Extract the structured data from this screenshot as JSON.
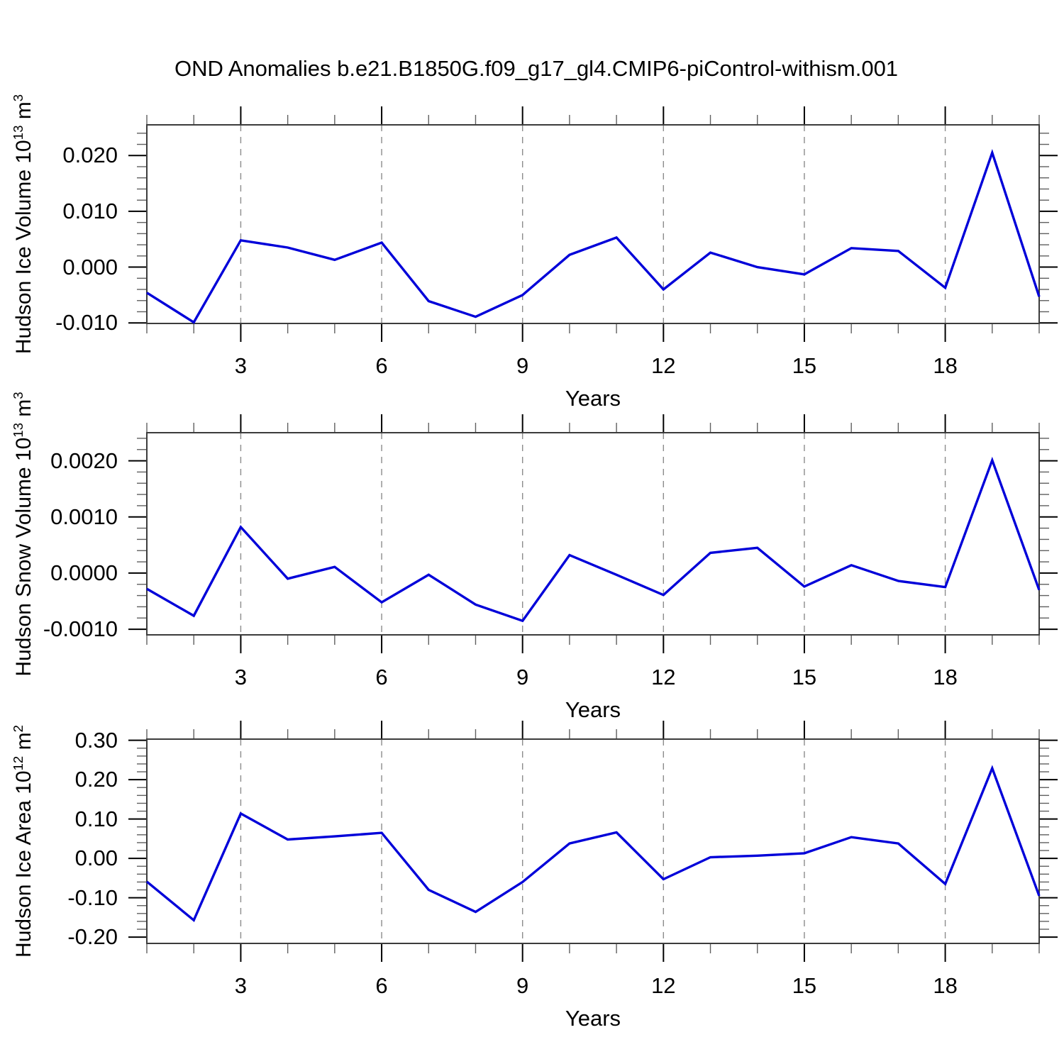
{
  "title": "OND Anomalies b.e21.B1850G.f09_g17_gl4.CMIP6-piControl-withism.001",
  "colors": {
    "line": "#0000d9",
    "frame": "#3c3c3c",
    "major_tick": "#000000",
    "minor_tick": "#606060",
    "gridline": "#8c8c8c",
    "text": "#000000",
    "background": "#ffffff"
  },
  "chart_data": [
    {
      "type": "line",
      "ylabel": {
        "base": "Hudson Ice Volume 10",
        "sup": "13",
        "unit": " m",
        "unit_sup": "3"
      },
      "xlabel": "Years",
      "x": [
        1,
        2,
        3,
        4,
        5,
        6,
        7,
        8,
        9,
        10,
        11,
        12,
        13,
        14,
        15,
        16,
        17,
        18,
        19,
        20
      ],
      "values": [
        -0.0046,
        -0.0099,
        0.0048,
        0.0035,
        0.0013,
        0.0044,
        -0.0061,
        -0.0089,
        -0.005,
        0.0022,
        0.0053,
        -0.004,
        0.0026,
        0.0,
        -0.0013,
        0.0034,
        0.0029,
        -0.0037,
        0.0205,
        -0.0053
      ],
      "xlim": [
        1,
        20
      ],
      "ylim": [
        -0.0101,
        0.0255
      ],
      "xtick_values": [
        3,
        6,
        9,
        12,
        15,
        18
      ],
      "xtick_labels": [
        "3",
        "6",
        "9",
        "12",
        "15",
        "18"
      ],
      "x_minor_step": 1,
      "ytick_values": [
        0.02,
        0.01,
        0.0,
        -0.01
      ],
      "ytick_labels": [
        "0.020",
        "0.010",
        "0.000",
        "-0.010"
      ],
      "y_minor_step": 0.002,
      "grid": "vertical-dashed"
    },
    {
      "type": "line",
      "ylabel": {
        "base": "Hudson Snow Volume 10",
        "sup": "13",
        "unit": " m",
        "unit_sup": "3"
      },
      "xlabel": "Years",
      "x": [
        1,
        2,
        3,
        4,
        5,
        6,
        7,
        8,
        9,
        10,
        11,
        12,
        13,
        14,
        15,
        16,
        17,
        18,
        19,
        20
      ],
      "values": [
        -0.00028,
        -0.00076,
        0.00082,
        -0.0001,
        0.00011,
        -0.00052,
        -3e-05,
        -0.00056,
        -0.00085,
        0.00032,
        -3e-05,
        -0.00039,
        0.00036,
        0.00045,
        -0.00024,
        0.00014,
        -0.00014,
        -0.00025,
        0.00201,
        -0.0003
      ],
      "xlim": [
        1,
        20
      ],
      "ylim": [
        -0.0011,
        0.0025
      ],
      "xtick_values": [
        3,
        6,
        9,
        12,
        15,
        18
      ],
      "xtick_labels": [
        "3",
        "6",
        "9",
        "12",
        "15",
        "18"
      ],
      "x_minor_step": 1,
      "ytick_values": [
        0.002,
        0.001,
        0.0,
        -0.001
      ],
      "ytick_labels": [
        "0.0020",
        "0.0010",
        "0.0000",
        "-0.0010"
      ],
      "y_minor_step": 0.0002,
      "grid": "vertical-dashed"
    },
    {
      "type": "line",
      "ylabel": {
        "base": "Hudson Ice Area 10",
        "sup": "12",
        "unit": " m",
        "unit_sup": "2"
      },
      "xlabel": "Years",
      "x": [
        1,
        2,
        3,
        4,
        5,
        6,
        7,
        8,
        9,
        10,
        11,
        12,
        13,
        14,
        15,
        16,
        17,
        18,
        19,
        20
      ],
      "values": [
        -0.059,
        -0.157,
        0.114,
        0.048,
        0.056,
        0.065,
        -0.08,
        -0.136,
        -0.06,
        0.038,
        0.066,
        -0.053,
        0.003,
        0.007,
        0.013,
        0.054,
        0.038,
        -0.065,
        0.229,
        -0.095
      ],
      "xlim": [
        1,
        20
      ],
      "ylim": [
        -0.216,
        0.303
      ],
      "xtick_values": [
        3,
        6,
        9,
        12,
        15,
        18
      ],
      "xtick_labels": [
        "3",
        "6",
        "9",
        "12",
        "15",
        "18"
      ],
      "x_minor_step": 1,
      "ytick_values": [
        0.3,
        0.2,
        0.1,
        0.0,
        -0.1,
        -0.2
      ],
      "ytick_labels": [
        "0.30",
        "0.20",
        "0.10",
        "0.00",
        "-0.10",
        "-0.20"
      ],
      "y_minor_step": 0.02,
      "grid": "vertical-dashed"
    }
  ]
}
